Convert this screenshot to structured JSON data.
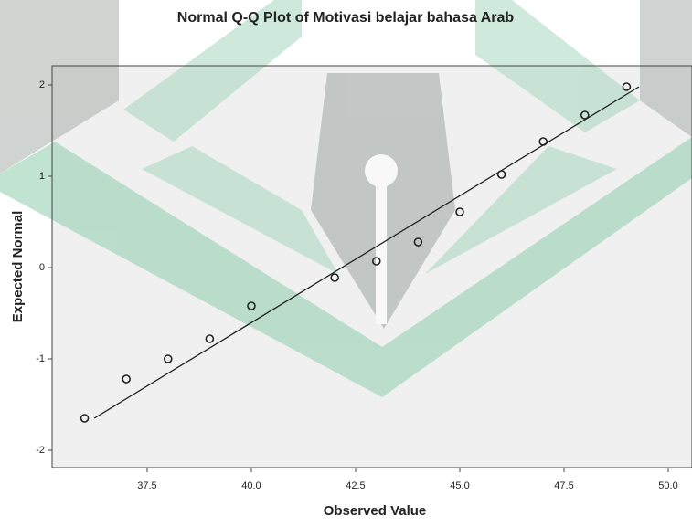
{
  "chart_data": {
    "type": "scatter",
    "title": "Normal Q-Q Plot of Motivasi belajar bahasa Arab",
    "x_label": "Observed Value",
    "y_label": "Expected Normal",
    "x": [
      36,
      37,
      38,
      39,
      40,
      42,
      43,
      44,
      45,
      46,
      47,
      48,
      49
    ],
    "values": [
      -1.65,
      -1.22,
      -1.0,
      -0.78,
      -0.42,
      -0.11,
      0.07,
      0.28,
      0.61,
      1.02,
      1.38,
      1.67,
      1.98
    ],
    "color": "#222222",
    "reference_line": {
      "x": [
        36.23,
        49.3
      ],
      "values": [
        -1.65,
        1.98
      ],
      "color": "#222222"
    },
    "xlim": [
      35.22,
      50.57
    ],
    "ylim": [
      -2.19,
      2.21
    ],
    "xticks": [
      37.5,
      {
        "value": 40,
        "label": "40.0"
      },
      42.5,
      {
        "value": 45,
        "label": "45.0"
      },
      47.5,
      {
        "value": 50,
        "label": "50.0"
      }
    ],
    "yticks": [
      -2,
      -1,
      0,
      1,
      2
    ]
  }
}
